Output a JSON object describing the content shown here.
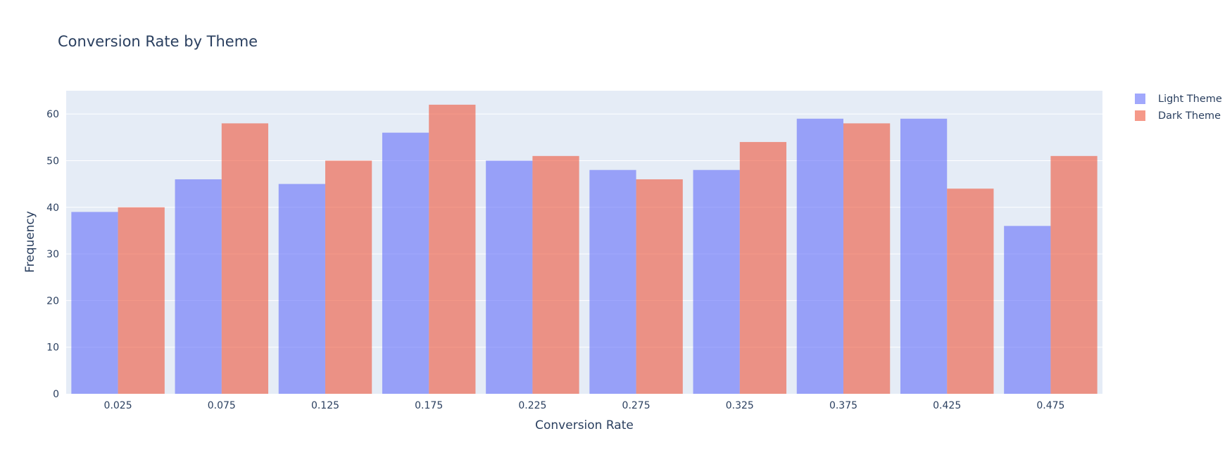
{
  "chart_data": {
    "type": "bar",
    "title": "Conversion Rate by Theme",
    "xlabel": "Conversion Rate",
    "ylabel": "Frequency",
    "categories": [
      "0.025",
      "0.075",
      "0.125",
      "0.175",
      "0.225",
      "0.275",
      "0.325",
      "0.375",
      "0.425",
      "0.475"
    ],
    "series": [
      {
        "name": "Light Theme",
        "color": "#636efa",
        "values": [
          39,
          46,
          45,
          56,
          50,
          48,
          48,
          59,
          59,
          36
        ]
      },
      {
        "name": "Dark Theme",
        "color": "#ef553b",
        "values": [
          40,
          58,
          50,
          62,
          51,
          46,
          54,
          58,
          44,
          51
        ]
      }
    ],
    "ylim": [
      0,
      65
    ],
    "yticks": [
      0,
      10,
      20,
      30,
      40,
      50,
      60
    ],
    "grid": true,
    "legend_position": "top-right",
    "plot_background": "#e5ecf6"
  }
}
